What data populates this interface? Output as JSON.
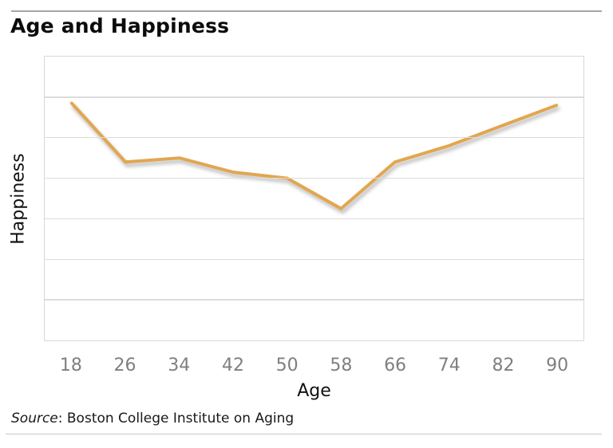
{
  "footer": {
    "source_label": "Source",
    "source_rest": ": Boston College Institute on Aging"
  },
  "chart_data": {
    "type": "line",
    "title": "Age and Happiness",
    "xlabel": "Age",
    "ylabel": "Happiness",
    "x": [
      18,
      26,
      34,
      42,
      50,
      58,
      66,
      74,
      82,
      90
    ],
    "x_tick_labels": [
      "18",
      "26",
      "34",
      "42",
      "50",
      "58",
      "66",
      "74",
      "82",
      "90"
    ],
    "series": [
      {
        "name": "Happiness",
        "values": [
          5.85,
          4.4,
          4.5,
          4.15,
          4.0,
          3.25,
          4.4,
          4.8,
          5.3,
          5.8
        ]
      }
    ],
    "ylim": [
      0,
      7
    ],
    "y_gridline_step": 1,
    "y_tick_labels_shown": false,
    "grid": {
      "horizontal": true,
      "vertical": false
    },
    "legend": "none",
    "line_width": 4,
    "source": "Boston College Institute on Aging",
    "colors": {
      "line": "#E2A64F",
      "grid": "#DCDCDC",
      "plot_border": "#D8D8D8",
      "tick_label": "#7F7F7F",
      "axis_label": "#111111",
      "title": "#0B0B0B",
      "top_rule": "#A6A6A6",
      "bottom_rule": "#C9C9C9"
    }
  }
}
